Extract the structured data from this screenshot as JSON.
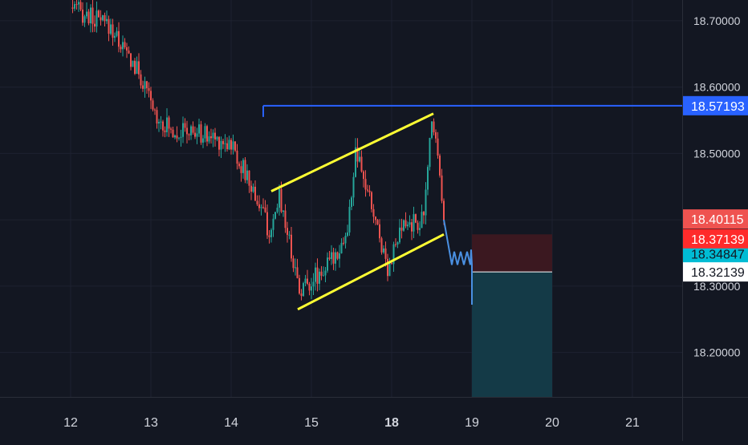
{
  "colors": {
    "background": "#131722",
    "grid": "#1e2230",
    "axis_text": "#d1d4dc",
    "candle_up": "#26a69a",
    "candle_down": "#ef5350",
    "channel_line": "#ffff33",
    "level_line": "#2962ff",
    "level_badge": "#2962ff",
    "projection": "#4a90e2",
    "stop_zone": "#3b1820",
    "target_zone": "#143a47",
    "last_price_badge": "#ef5350",
    "entry_badge": "#ff2b2b",
    "teal_badge": "#00bcd4",
    "white_badge": "#ffffff"
  },
  "chart_data": {
    "type": "candlestick",
    "ylim": [
      18.133,
      18.724
    ],
    "price_ticks": [
      "18.70000",
      "18.60000",
      "18.50000",
      "18.40000",
      "18.30000",
      "18.20000"
    ],
    "price_tick_values": [
      18.7,
      18.6,
      18.5,
      18.4,
      18.3,
      18.2
    ],
    "x_ticks": [
      "12",
      "13",
      "14",
      "15",
      "18",
      "19",
      "20",
      "21"
    ],
    "x_tick_bold": [
      false,
      false,
      false,
      false,
      true,
      false,
      false,
      false
    ],
    "x_tick_index": [
      0,
      1,
      2,
      3,
      4,
      5,
      6,
      7
    ],
    "candles_from": 0.0,
    "candles_to": 4.65,
    "key_prices": [
      18.72,
      18.69,
      18.62,
      18.56,
      18.535,
      18.53,
      18.515,
      18.41,
      18.37,
      18.44,
      18.295,
      18.33,
      18.38,
      18.5,
      18.42,
      18.33,
      18.39,
      18.4,
      18.56,
      18.48,
      18.4
    ],
    "key_index": [
      0.0,
      0.5,
      0.85,
      1.05,
      1.25,
      1.6,
      2.0,
      2.4,
      2.5,
      2.6,
      2.85,
      3.2,
      3.45,
      3.55,
      3.75,
      3.95,
      4.15,
      4.4,
      4.5,
      4.6,
      4.65
    ],
    "resistance_level": 18.57193,
    "resistance_from": 2.4,
    "channel_upper": [
      [
        2.5,
        18.443
      ],
      [
        4.52,
        18.56
      ]
    ],
    "channel_lower": [
      [
        2.83,
        18.265
      ],
      [
        4.65,
        18.378
      ]
    ],
    "projection_path": [
      [
        4.65,
        18.4
      ],
      [
        4.75,
        18.332
      ],
      [
        4.78,
        18.352
      ],
      [
        4.82,
        18.332
      ],
      [
        4.86,
        18.352
      ],
      [
        4.9,
        18.332
      ],
      [
        4.94,
        18.352
      ],
      [
        4.98,
        18.332
      ],
      [
        4.99,
        18.355
      ],
      [
        5.0,
        18.332
      ],
      [
        5.0,
        18.272
      ]
    ],
    "position": {
      "from": 5.0,
      "to": 6.0,
      "stop_top": 18.378,
      "entry": 18.32139,
      "target": 18.133
    },
    "price_labels": [
      {
        "text": "18.57193",
        "value": 18.57193,
        "role": "level"
      },
      {
        "text": "18.40115",
        "value": 18.40115,
        "role": "last"
      },
      {
        "text": "18.37139",
        "value": 18.37139,
        "role": "entry_marker"
      },
      {
        "text": "18.34847",
        "value": 18.34847,
        "role": "teal"
      },
      {
        "text": "18.32139",
        "value": 18.32139,
        "role": "white"
      }
    ]
  }
}
